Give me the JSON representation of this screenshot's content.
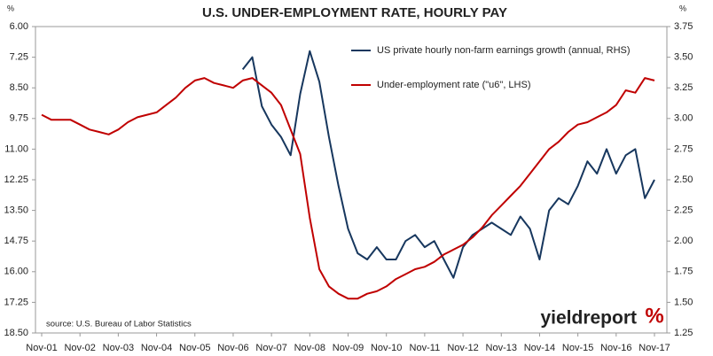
{
  "chart_data": {
    "type": "line",
    "title": "U.S. UNDER-EMPLOYMENT RATE, HOURLY PAY",
    "y_unit": "%",
    "y2_unit": "%",
    "source": "source: U.S. Bureau of Labor Statistics",
    "logo": "yieldreport",
    "logo_symbol": "%",
    "categories": [
      "Nov-01",
      null,
      null,
      null,
      "Nov-02",
      null,
      null,
      null,
      "Nov-03",
      null,
      null,
      null,
      "Nov-04",
      null,
      null,
      null,
      "Nov-05",
      null,
      null,
      null,
      "Nov-06",
      null,
      null,
      null,
      "Nov-07",
      null,
      null,
      null,
      "Nov-08",
      null,
      null,
      null,
      "Nov-09",
      null,
      null,
      null,
      "Nov-10",
      null,
      null,
      null,
      "Nov-11",
      null,
      null,
      null,
      "Nov-12",
      null,
      null,
      null,
      "Nov-13",
      null,
      null,
      null,
      "Nov-14",
      null,
      null,
      null,
      "Nov-15",
      null,
      null,
      null,
      "Nov-16",
      null,
      null,
      null,
      "Nov-17"
    ],
    "series": [
      {
        "name": "US private hourly non-farm earnings growth (annual, RHS)",
        "color": "#17375e",
        "axis": "y2",
        "values": [
          null,
          null,
          null,
          null,
          null,
          null,
          null,
          null,
          null,
          null,
          null,
          null,
          null,
          null,
          null,
          null,
          null,
          null,
          null,
          null,
          null,
          3.4,
          3.5,
          3.1,
          2.95,
          2.85,
          2.7,
          3.2,
          3.55,
          3.3,
          2.85,
          2.45,
          2.1,
          1.9,
          1.85,
          1.95,
          1.85,
          1.85,
          2.0,
          2.05,
          1.95,
          2.0,
          1.85,
          1.7,
          1.95,
          2.05,
          2.1,
          2.15,
          2.1,
          2.05,
          2.2,
          2.1,
          1.85,
          2.25,
          2.35,
          2.3,
          2.45,
          2.65,
          2.55,
          2.75,
          2.55,
          2.7,
          2.75,
          2.35,
          2.5
        ]
      },
      {
        "name": "Under-employment  rate (\"u6\", LHS)",
        "color": "#c00000",
        "values": [
          9.6,
          9.8,
          9.8,
          9.8,
          10.0,
          10.2,
          10.3,
          10.4,
          10.2,
          9.9,
          9.7,
          9.6,
          9.5,
          9.2,
          8.9,
          8.5,
          8.2,
          8.1,
          8.3,
          8.4,
          8.5,
          8.2,
          8.1,
          8.4,
          8.7,
          9.2,
          10.2,
          11.2,
          13.8,
          15.9,
          16.6,
          16.9,
          17.1,
          17.1,
          16.9,
          16.8,
          16.6,
          16.3,
          16.1,
          15.9,
          15.8,
          15.6,
          15.3,
          15.1,
          14.9,
          14.6,
          14.2,
          13.7,
          13.3,
          12.9,
          12.5,
          12.0,
          11.5,
          11.0,
          10.7,
          10.3,
          10.0,
          9.9,
          9.7,
          9.5,
          9.2,
          8.6,
          8.7,
          8.1,
          8.2
        ]
      }
    ],
    "ylim": [
      6,
      18.5
    ],
    "y_inverted": true,
    "yticks": [
      {
        "value": 6,
        "label": "6.00"
      },
      {
        "value": 7.25,
        "label": "7.25"
      },
      {
        "value": 8.5,
        "label": "8.50"
      },
      {
        "value": 9.75,
        "label": "9.75"
      },
      {
        "value": 11,
        "label": "11.00"
      },
      {
        "value": 12.25,
        "label": "12.25"
      },
      {
        "value": 13.5,
        "label": "13.50"
      },
      {
        "value": 14.75,
        "label": "14.75"
      },
      {
        "value": 16,
        "label": "16.00"
      },
      {
        "value": 17.25,
        "label": "17.25"
      },
      {
        "value": 18.5,
        "label": "18.50"
      }
    ],
    "y2lim": [
      1.25,
      3.75
    ],
    "y2ticks": [
      {
        "value": 1.25,
        "label": "1.25"
      },
      {
        "value": 1.5,
        "label": "1.50"
      },
      {
        "value": 1.75,
        "label": "1.75"
      },
      {
        "value": 2,
        "label": "2.00"
      },
      {
        "value": 2.25,
        "label": "2.25"
      },
      {
        "value": 2.5,
        "label": "2.50"
      },
      {
        "value": 2.75,
        "label": "2.75"
      },
      {
        "value": 3,
        "label": "3.00"
      },
      {
        "value": 3.25,
        "label": "3.25"
      },
      {
        "value": 3.5,
        "label": "3.50"
      },
      {
        "value": 3.75,
        "label": "3.75"
      }
    ],
    "legend": "upper right",
    "grid": false
  }
}
